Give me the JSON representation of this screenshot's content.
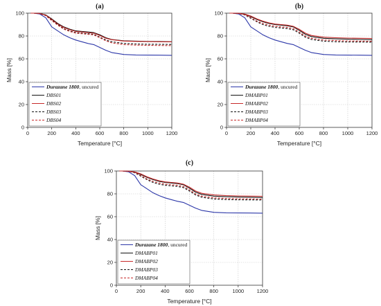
{
  "chart_data": [
    {
      "type": "line",
      "title": "(a)",
      "xlabel": "Temperature [°C]",
      "ylabel": "Mass [%]",
      "xlim": [
        0,
        1200
      ],
      "ylim": [
        0,
        100
      ],
      "xticks": [
        "0",
        "200",
        "400",
        "600",
        "800",
        "1000",
        "1200"
      ],
      "yticks": [
        "0",
        "20",
        "40",
        "60",
        "80",
        "100"
      ],
      "grid": true,
      "legend_position": "bottom-left",
      "series": [
        {
          "name": "Durazane 1800",
          "name_suffix": ", uncured",
          "color": "#2b36a8",
          "dash": "solid",
          "x": [
            25,
            50,
            100,
            150,
            200,
            250,
            300,
            350,
            400,
            450,
            500,
            550,
            600,
            650,
            700,
            800,
            900,
            1000,
            1100,
            1200
          ],
          "y": [
            100,
            100,
            99.3,
            96,
            88,
            84.5,
            81,
            78.5,
            76.5,
            75,
            73.5,
            72.5,
            70,
            67.5,
            65.5,
            63.8,
            63.4,
            63.3,
            63.2,
            63.1
          ]
        },
        {
          "name": "DBS01",
          "color": "#111111",
          "dash": "solid",
          "x": [
            25,
            50,
            100,
            150,
            200,
            250,
            300,
            350,
            400,
            450,
            500,
            550,
            600,
            650,
            700,
            800,
            900,
            1000,
            1100,
            1200
          ],
          "y": [
            100,
            100,
            99.8,
            98.5,
            95,
            91,
            88,
            86,
            84.5,
            84,
            83.5,
            83,
            81,
            78.5,
            77,
            75.8,
            75.5,
            75.3,
            75.2,
            75
          ]
        },
        {
          "name": "DBS02",
          "color": "#c62828",
          "dash": "solid",
          "x": [
            25,
            50,
            100,
            150,
            200,
            250,
            300,
            350,
            400,
            450,
            500,
            550,
            600,
            650,
            700,
            800,
            900,
            1000,
            1100,
            1200
          ],
          "y": [
            100,
            100,
            99.8,
            98.3,
            94.5,
            90.5,
            87.5,
            85.5,
            84,
            83.5,
            83,
            82.5,
            80.5,
            78,
            76.8,
            75.6,
            75.3,
            75.1,
            75,
            74.9
          ]
        },
        {
          "name": "DBS03",
          "color": "#111111",
          "dash": "dashed",
          "x": [
            25,
            50,
            100,
            150,
            200,
            250,
            300,
            350,
            400,
            450,
            500,
            550,
            600,
            650,
            700,
            800,
            900,
            1000,
            1100,
            1200
          ],
          "y": [
            100,
            100,
            99.7,
            98,
            94,
            90,
            86.5,
            84.5,
            83,
            82.5,
            82,
            81.5,
            79,
            76.5,
            75,
            73.5,
            73,
            72.8,
            72.7,
            72.6
          ]
        },
        {
          "name": "DBS04",
          "color": "#c62828",
          "dash": "dashed",
          "x": [
            25,
            50,
            100,
            150,
            200,
            250,
            300,
            350,
            400,
            450,
            500,
            550,
            600,
            650,
            700,
            800,
            900,
            1000,
            1100,
            1200
          ],
          "y": [
            100,
            100,
            99.6,
            97.8,
            93.5,
            89.5,
            86,
            84,
            82.5,
            82,
            81.5,
            81,
            78.5,
            75.8,
            74,
            72.5,
            72,
            71.8,
            71.7,
            71.6
          ]
        }
      ]
    },
    {
      "type": "line",
      "title": "(b)",
      "xlabel": "Temperature [°C]",
      "ylabel": "Mass [%]",
      "xlim": [
        0,
        1200
      ],
      "ylim": [
        0,
        100
      ],
      "xticks": [
        "0",
        "200",
        "400",
        "600",
        "800",
        "1000",
        "1200"
      ],
      "yticks": [
        "0",
        "20",
        "40",
        "60",
        "80",
        "100"
      ],
      "grid": true,
      "legend_position": "bottom-left",
      "series": [
        {
          "name": "Durazane 1800",
          "name_suffix": ", uncured",
          "color": "#2b36a8",
          "dash": "solid",
          "x": [
            25,
            50,
            100,
            150,
            200,
            250,
            300,
            350,
            400,
            450,
            500,
            550,
            600,
            650,
            700,
            800,
            900,
            1000,
            1100,
            1200
          ],
          "y": [
            100,
            100,
            99.3,
            96,
            88,
            84.5,
            81,
            78.5,
            76.5,
            75,
            73.5,
            72.5,
            70,
            67.5,
            65.5,
            63.8,
            63.4,
            63.3,
            63.2,
            63.1
          ]
        },
        {
          "name": "DMABP01",
          "color": "#111111",
          "dash": "solid",
          "x": [
            25,
            50,
            100,
            150,
            200,
            250,
            300,
            350,
            400,
            450,
            500,
            550,
            600,
            650,
            700,
            800,
            900,
            1000,
            1100,
            1200
          ],
          "y": [
            100,
            100,
            99.8,
            99,
            97,
            94.5,
            92.5,
            91,
            90,
            89.5,
            89,
            88,
            85,
            81.5,
            79.5,
            78,
            77.5,
            77.2,
            77,
            76.8
          ]
        },
        {
          "name": "DMABP02",
          "color": "#c62828",
          "dash": "solid",
          "x": [
            25,
            50,
            100,
            150,
            200,
            250,
            300,
            350,
            400,
            450,
            500,
            550,
            600,
            650,
            700,
            800,
            900,
            1000,
            1100,
            1200
          ],
          "y": [
            100,
            100,
            99.9,
            99.2,
            97.5,
            95,
            93,
            91.5,
            90.5,
            90,
            89.5,
            88.5,
            85.8,
            82.5,
            80.5,
            79,
            78.5,
            78.2,
            78,
            77.9
          ]
        },
        {
          "name": "DMABP03",
          "color": "#111111",
          "dash": "dashed",
          "x": [
            25,
            50,
            100,
            150,
            200,
            250,
            300,
            350,
            400,
            450,
            500,
            550,
            600,
            650,
            700,
            800,
            900,
            1000,
            1100,
            1200
          ],
          "y": [
            100,
            100,
            99.7,
            98.5,
            95.5,
            92.5,
            90,
            88.5,
            87.5,
            87,
            86.5,
            85.5,
            82.5,
            79,
            77,
            75.5,
            75,
            74.8,
            74.7,
            74.6
          ]
        },
        {
          "name": "DMABP04",
          "color": "#c62828",
          "dash": "dashed",
          "x": [
            25,
            50,
            100,
            150,
            200,
            250,
            300,
            350,
            400,
            450,
            500,
            550,
            600,
            650,
            700,
            800,
            900,
            1000,
            1100,
            1200
          ],
          "y": [
            100,
            100,
            99.7,
            98.8,
            96,
            93,
            91,
            89.5,
            88.5,
            88,
            87.5,
            86.5,
            83.5,
            80,
            78,
            76.5,
            76,
            75.7,
            75.5,
            75.4
          ]
        }
      ]
    },
    {
      "type": "line",
      "title": "(c)",
      "xlabel": "Temperature [°C]",
      "ylabel": "Mass [%]",
      "xlim": [
        0,
        1200
      ],
      "ylim": [
        0,
        100
      ],
      "xticks": [
        "0",
        "200",
        "400",
        "600",
        "800",
        "1000",
        "1200"
      ],
      "yticks": [
        "0",
        "20",
        "40",
        "60",
        "80",
        "100"
      ],
      "grid": true,
      "legend_position": "bottom-left",
      "series": [
        {
          "name": "Durazane 1800",
          "name_suffix": ", uncured",
          "color": "#2b36a8",
          "dash": "solid",
          "x": [
            25,
            50,
            100,
            150,
            200,
            250,
            300,
            350,
            400,
            450,
            500,
            550,
            600,
            650,
            700,
            800,
            900,
            1000,
            1100,
            1200
          ],
          "y": [
            100,
            100,
            99.3,
            96,
            88,
            84.5,
            81,
            78.5,
            76.5,
            75,
            73.5,
            72.5,
            70,
            67.5,
            65.5,
            63.8,
            63.4,
            63.3,
            63.2,
            63.1
          ]
        },
        {
          "name": "DMABP01",
          "color": "#111111",
          "dash": "solid",
          "x": [
            25,
            50,
            100,
            150,
            200,
            250,
            300,
            350,
            400,
            450,
            500,
            550,
            600,
            650,
            700,
            800,
            900,
            1000,
            1100,
            1200
          ],
          "y": [
            100,
            100,
            99.8,
            99,
            97,
            94.5,
            92.5,
            91,
            90,
            89.5,
            89,
            88,
            85,
            81.5,
            79.5,
            78,
            77.5,
            77.2,
            77,
            76.8
          ]
        },
        {
          "name": "DMABP02",
          "color": "#c62828",
          "dash": "solid",
          "x": [
            25,
            50,
            100,
            150,
            200,
            250,
            300,
            350,
            400,
            450,
            500,
            550,
            600,
            650,
            700,
            800,
            900,
            1000,
            1100,
            1200
          ],
          "y": [
            100,
            100,
            99.9,
            99.2,
            97.5,
            95,
            93,
            91.5,
            90.5,
            90,
            89.5,
            88.5,
            85.8,
            82.5,
            80.5,
            79,
            78.5,
            78.2,
            78,
            77.9
          ]
        },
        {
          "name": "DMABP03",
          "color": "#111111",
          "dash": "dashed",
          "x": [
            25,
            50,
            100,
            150,
            200,
            250,
            300,
            350,
            400,
            450,
            500,
            550,
            600,
            650,
            700,
            800,
            900,
            1000,
            1100,
            1200
          ],
          "y": [
            100,
            100,
            99.7,
            98.5,
            95.5,
            92.5,
            90,
            88.5,
            87.5,
            87,
            86.5,
            85.5,
            82.5,
            79,
            77,
            75.5,
            75,
            74.8,
            74.7,
            74.6
          ]
        },
        {
          "name": "DMABP04",
          "color": "#c62828",
          "dash": "dashed",
          "x": [
            25,
            50,
            100,
            150,
            200,
            250,
            300,
            350,
            400,
            450,
            500,
            550,
            600,
            650,
            700,
            800,
            900,
            1000,
            1100,
            1200
          ],
          "y": [
            100,
            100,
            99.7,
            98.8,
            96,
            93,
            91,
            89.5,
            88.5,
            88,
            87.5,
            86.5,
            83.5,
            80,
            78,
            76.5,
            76,
            75.7,
            75.5,
            75.4
          ]
        }
      ]
    }
  ]
}
